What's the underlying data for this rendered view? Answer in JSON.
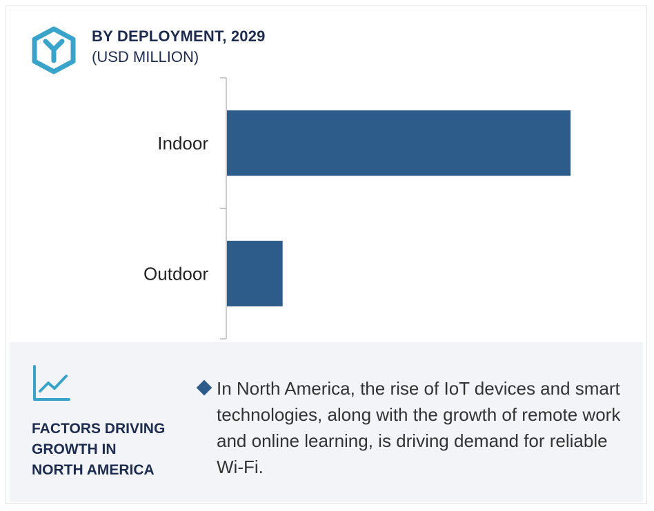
{
  "header": {
    "title": "BY DEPLOYMENT, 2029",
    "subtitle": "(USD MILLION)",
    "logo_icon": "hexagon-y-logo-icon"
  },
  "colors": {
    "bar": "#2d5b8a",
    "title": "#1d2b4f",
    "accent_teal": "#3aa3c9",
    "panel_bg": "#f3f4f7"
  },
  "chart_data": {
    "type": "bar",
    "orientation": "horizontal",
    "title": "BY DEPLOYMENT, 2029",
    "subtitle": "(USD MILLION)",
    "categories": [
      "Indoor",
      "Outdoor"
    ],
    "values": [
      100,
      16.2
    ],
    "value_scale": "relative (no axis values shown)",
    "xlim": [
      0,
      100
    ],
    "grid": false,
    "legend": "none"
  },
  "factors": {
    "icon": "trend-chart-icon",
    "heading": "FACTORS DRIVING\nGROWTH IN\nNORTH AMERICA",
    "bullet_icon": "diamond-bullet-icon",
    "text": "In North America, the rise of IoT devices and smart technologies, along with the growth of remote work and online learning, is driving demand for reliable Wi-Fi."
  }
}
